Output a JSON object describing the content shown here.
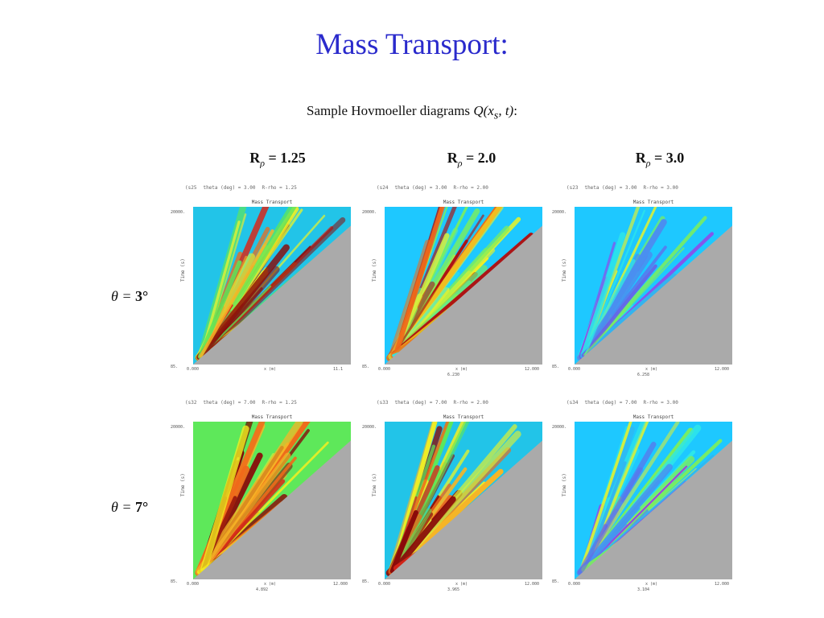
{
  "slide": {
    "title": "Mass Transport:",
    "subtitle_text": "Sample Hovmoeller diagrams ",
    "subtitle_math": "Q(x",
    "subtitle_sub": "s",
    "subtitle_math_end": ", t)",
    "subtitle_colon": ":"
  },
  "columns": [
    {
      "label": "R",
      "sub": "ρ",
      "value": " = 1.25"
    },
    {
      "label": "R",
      "sub": "ρ",
      "value": " = 2.0"
    },
    {
      "label": "R",
      "sub": "ρ",
      "value": " = 3.0"
    }
  ],
  "rows": [
    {
      "math": "θ = ",
      "value": "3°"
    },
    {
      "math": "θ = ",
      "value": "7°"
    }
  ],
  "panels": [
    {
      "run": "(s25",
      "theta": "theta (deg) = 3.00",
      "rho": "R-rho =  1.25",
      "plot_title": "Mass Transport",
      "ylabel": "Time (s)",
      "ymax": "20000.",
      "ymin": "85.",
      "xmin": "0.000",
      "xmax": "11.1",
      "xlabel": "x (m)",
      "mark": "",
      "palette": "warm"
    },
    {
      "run": "(s24",
      "theta": "theta (deg) = 3.00",
      "rho": "R-rho =  2.00",
      "plot_title": "Mass Transport",
      "ylabel": "Time (s)",
      "ymax": "20000.",
      "ymin": "85.",
      "xmin": "0.000",
      "xmax": "12.000",
      "xlabel": "x (m)",
      "mark": "6.230",
      "palette": "cyan"
    },
    {
      "run": "(s23",
      "theta": "theta (deg) = 3.00",
      "rho": "R-rho =  3.00",
      "plot_title": "Mass Transport",
      "ylabel": "Time (s)",
      "ymax": "20000.",
      "ymin": "85.",
      "xmin": "0.000",
      "xmax": "12.000",
      "xlabel": "x (m)",
      "mark": "6.258",
      "palette": "blue"
    },
    {
      "run": "(s32",
      "theta": "theta (deg) = 7.00",
      "rho": "R-rho =  1.25",
      "plot_title": "Mass Transport",
      "ylabel": "Time (s)",
      "ymax": "20000.",
      "ymin": "85.",
      "xmin": "0.000",
      "xmax": "12.000",
      "xlabel": "x (m)",
      "mark": "4.892",
      "palette": "hot"
    },
    {
      "run": "(s33",
      "theta": "theta (deg) = 7.00",
      "rho": "R-rho =  2.00",
      "plot_title": "Mass Transport",
      "ylabel": "Time (s)",
      "ymax": "20000.",
      "ymin": "85.",
      "xmin": "0.000",
      "xmax": "12.000",
      "xlabel": "x (m)",
      "mark": "3.965",
      "palette": "warm"
    },
    {
      "run": "(s34",
      "theta": "theta (deg) = 7.00",
      "rho": "R-rho =  3.00",
      "plot_title": "Mass Transport",
      "ylabel": "Time (s)",
      "ymax": "20000.",
      "ymin": "85.",
      "xmin": "0.000",
      "xmax": "12.000",
      "xlabel": "x (m)",
      "mark": "3.104",
      "palette": "blue"
    }
  ],
  "colors": {
    "title": "#2a2acc",
    "masked_region": "#aaaaaa"
  }
}
